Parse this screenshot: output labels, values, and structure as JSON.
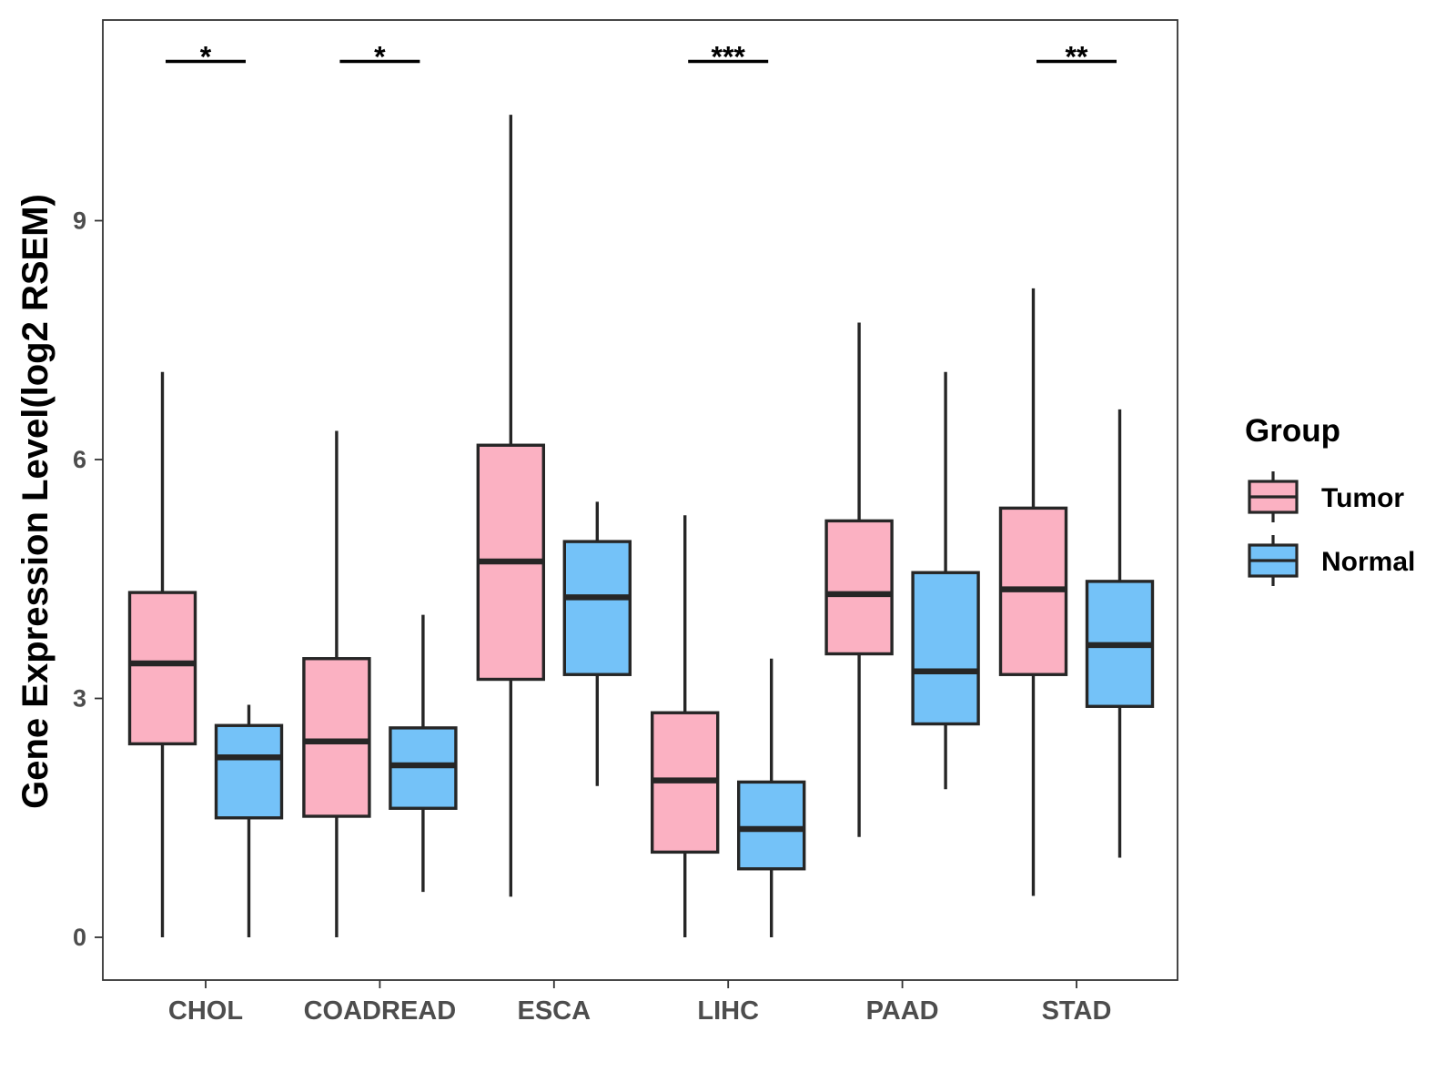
{
  "chart_data": {
    "type": "boxplot",
    "title": "",
    "xlabel": "",
    "ylabel": "Gene Expression Level(log2 RSEM)",
    "ylim": [
      -0.5,
      11.6
    ],
    "yticks": [
      0,
      3,
      6,
      9
    ],
    "categories": [
      "CHOL",
      "COADREAD",
      "ESCA",
      "LIHC",
      "PAAD",
      "STAD"
    ],
    "legend": {
      "title": "Group",
      "position": "right",
      "entries": [
        "Tumor",
        "Normal"
      ]
    },
    "colors": {
      "Tumor": "#fbb1c2",
      "Normal": "#74c2f8",
      "outline": "#262626"
    },
    "series": [
      {
        "name": "Tumor",
        "boxes": [
          {
            "min": 0.0,
            "q1": 2.43,
            "median": 3.44,
            "q3": 4.33,
            "max": 7.1
          },
          {
            "min": 0.0,
            "q1": 1.52,
            "median": 2.46,
            "q3": 3.5,
            "max": 6.36
          },
          {
            "min": 0.51,
            "q1": 3.24,
            "median": 4.72,
            "q3": 6.18,
            "max": 10.33
          },
          {
            "min": 0.0,
            "q1": 1.07,
            "median": 1.97,
            "q3": 2.82,
            "max": 5.3
          },
          {
            "min": 1.26,
            "q1": 3.56,
            "median": 4.31,
            "q3": 5.23,
            "max": 7.72
          },
          {
            "min": 0.52,
            "q1": 3.3,
            "median": 4.37,
            "q3": 5.39,
            "max": 8.15
          }
        ]
      },
      {
        "name": "Normal",
        "boxes": [
          {
            "min": 0.0,
            "q1": 1.5,
            "median": 2.26,
            "q3": 2.66,
            "max": 2.92
          },
          {
            "min": 0.57,
            "q1": 1.62,
            "median": 2.16,
            "q3": 2.63,
            "max": 4.05
          },
          {
            "min": 1.9,
            "q1": 3.3,
            "median": 4.27,
            "q3": 4.97,
            "max": 5.47
          },
          {
            "min": 0.0,
            "q1": 0.86,
            "median": 1.36,
            "q3": 1.95,
            "max": 3.5
          },
          {
            "min": 1.86,
            "q1": 2.68,
            "median": 3.34,
            "q3": 4.58,
            "max": 7.1
          },
          {
            "min": 1.0,
            "q1": 2.9,
            "median": 3.67,
            "q3": 4.47,
            "max": 6.63
          }
        ]
      }
    ],
    "significance": [
      {
        "category": "CHOL",
        "label": "*"
      },
      {
        "category": "COADREAD",
        "label": "*"
      },
      {
        "category": "ESCA",
        "label": ""
      },
      {
        "category": "LIHC",
        "label": "***"
      },
      {
        "category": "PAAD",
        "label": ""
      },
      {
        "category": "STAD",
        "label": "**"
      }
    ],
    "significance_y": 11.0
  }
}
